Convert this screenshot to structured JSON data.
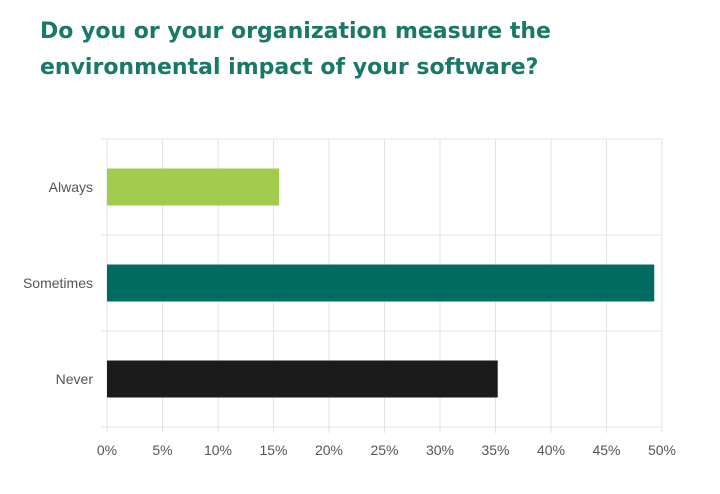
{
  "chart_data": {
    "type": "bar",
    "orientation": "horizontal",
    "title": "Do you or your organization measure the environmental impact of your software?",
    "categories": [
      "Always",
      "Sometimes",
      "Never"
    ],
    "values": [
      15.5,
      49.3,
      35.2
    ],
    "value_unit": "%",
    "xlim": [
      0,
      50
    ],
    "xticks": [
      "0%",
      "5%",
      "10%",
      "15%",
      "20%",
      "25%",
      "30%",
      "35%",
      "40%",
      "45%",
      "50%"
    ],
    "xtick_values": [
      0,
      5,
      10,
      15,
      20,
      25,
      30,
      35,
      40,
      45,
      50
    ],
    "grid": true,
    "legend": "none",
    "colors": [
      "#a2cc4e",
      "#006b60",
      "#1b1b1b"
    ],
    "title_color": "#1a7868",
    "grid_color": "#e3e3e3"
  }
}
